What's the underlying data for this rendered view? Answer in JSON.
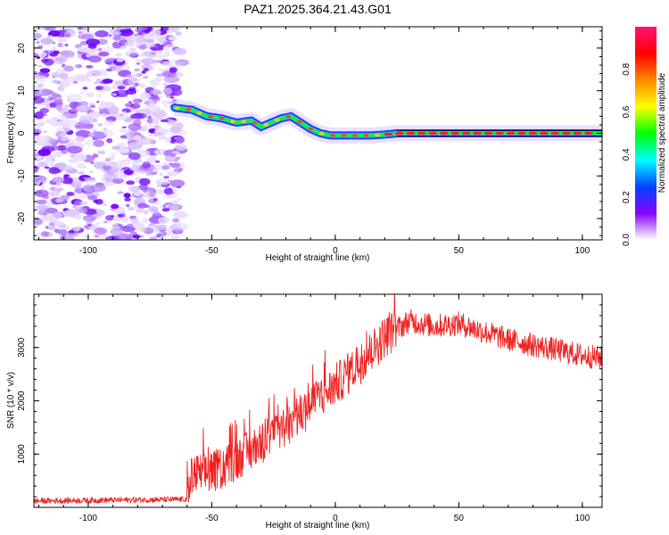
{
  "figure": {
    "title": "PAZ1.2025.364.21.43.G01"
  },
  "chart_data": [
    {
      "type": "heatmap",
      "name": "spectrogram",
      "xlabel": "Height of straight line (km)",
      "ylabel": "Frequency (Hz)",
      "xlim": [
        -122,
        108
      ],
      "ylim": [
        -25,
        25
      ],
      "xticks": [
        -100,
        -50,
        0,
        50,
        100
      ],
      "yticks": [
        -20,
        -10,
        0,
        10,
        20
      ],
      "noise_region_x": [
        -122,
        -62
      ],
      "noise_region_y": [
        -25,
        25
      ],
      "ridge_line": {
        "x": [
          -65,
          -58,
          -52,
          -46,
          -40,
          -34,
          -30,
          -26,
          -22,
          -18,
          -14,
          -10,
          -6,
          -2,
          2,
          8,
          14,
          20,
          25,
          30,
          40,
          50,
          60,
          70,
          80,
          90,
          100,
          108
        ],
        "y": [
          6,
          5.5,
          4,
          3.5,
          2.5,
          3,
          1.5,
          2.5,
          3.5,
          4,
          2.5,
          1,
          0,
          -0.5,
          -0.5,
          -0.5,
          -0.5,
          -0.3,
          0,
          0,
          0,
          0,
          0,
          0,
          0,
          0,
          0,
          0
        ]
      },
      "colorbar": {
        "label": "Normalized spectral amplitude",
        "ticks": [
          "0.0",
          "0.2",
          "0.4",
          "0.6",
          "0.8"
        ],
        "tick_values": [
          0,
          0.2,
          0.4,
          0.6,
          0.8
        ],
        "range": [
          0,
          1
        ],
        "colors": [
          "#ffffff",
          "#8800ff",
          "#0044ff",
          "#00ffff",
          "#00ff00",
          "#ffff00",
          "#ff8800",
          "#ff0000",
          "#ff1177"
        ]
      }
    },
    {
      "type": "line",
      "name": "snr",
      "xlabel": "Height of straight line (km)",
      "ylabel": "SNR (10 * v/v)",
      "xlim": [
        -122,
        108
      ],
      "ylim": [
        0,
        4000
      ],
      "xticks": [
        -100,
        -50,
        0,
        50,
        100
      ],
      "yticks": [
        1000,
        2000,
        3000
      ],
      "color": "#ee2222",
      "trend": {
        "x": [
          -122,
          -60,
          -58,
          -50,
          -40,
          -30,
          -20,
          -10,
          0,
          10,
          20,
          30,
          40,
          50,
          60,
          70,
          80,
          90,
          100,
          108
        ],
        "y": [
          120,
          150,
          600,
          650,
          900,
          1200,
          1500,
          1900,
          2300,
          2700,
          3200,
          3500,
          3400,
          3450,
          3300,
          3150,
          3050,
          2950,
          2850,
          2800
        ]
      },
      "noise_amplitude": 250
    }
  ]
}
